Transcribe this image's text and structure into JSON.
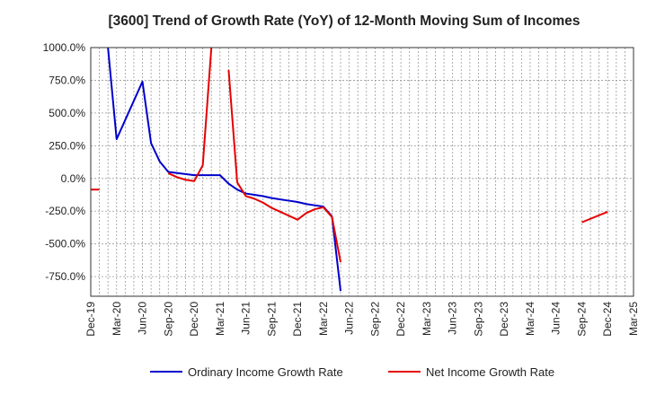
{
  "chart_data": {
    "type": "line",
    "title": "[3600]  Trend of Growth Rate (YoY) of 12-Month Moving Sum of Incomes",
    "xlabel": "",
    "ylabel": "",
    "ylim": [
      -900,
      1000
    ],
    "y_ticks": [
      1000,
      750,
      500,
      250,
      0,
      -250,
      -500,
      -750
    ],
    "y_tick_labels": [
      "1000.0%",
      "750.0%",
      "500.0%",
      "250.0%",
      "0.0%",
      "-250.0%",
      "-500.0%",
      "-750.0%"
    ],
    "x_tick_labels": [
      "Dec-19",
      "Mar-20",
      "Jun-20",
      "Sep-20",
      "Dec-20",
      "Mar-21",
      "Jun-21",
      "Sep-21",
      "Dec-21",
      "Mar-22",
      "Jun-22",
      "Sep-22",
      "Dec-22",
      "Mar-23",
      "Jun-23",
      "Sep-23",
      "Dec-23",
      "Mar-24",
      "Jun-24",
      "Sep-24",
      "Dec-24",
      "Mar-25"
    ],
    "grid": true,
    "legend_position": "bottom",
    "series": [
      {
        "name": "Ordinary Income Growth Rate",
        "color": "#0000cc",
        "values": [
          [
            "2020-02",
            1000
          ],
          [
            "2020-03",
            300
          ],
          [
            "2020-06",
            740
          ],
          [
            "2020-07",
            270
          ],
          [
            "2020-08",
            130
          ],
          [
            "2020-09",
            50
          ],
          [
            "2020-12",
            25
          ],
          [
            "2021-01",
            25
          ],
          [
            "2021-02",
            25
          ],
          [
            "2021-03",
            25
          ],
          [
            "2021-04",
            -40
          ],
          [
            "2021-05",
            -85
          ],
          [
            "2021-06",
            -115
          ],
          [
            "2021-07",
            -125
          ],
          [
            "2021-08",
            -135
          ],
          [
            "2021-09",
            -150
          ],
          [
            "2021-10",
            -160
          ],
          [
            "2021-11",
            -170
          ],
          [
            "2021-12",
            -180
          ],
          [
            "2022-01",
            -195
          ],
          [
            "2022-02",
            -205
          ],
          [
            "2022-03",
            -215
          ],
          [
            "2022-04",
            -290
          ],
          [
            "2022-05",
            -860
          ]
        ]
      },
      {
        "name": "Net Income Growth Rate",
        "color": "#e60000",
        "values": [
          [
            "2019-12",
            -85
          ],
          [
            "2020-01",
            -85
          ],
          null,
          [
            "2020-09",
            40
          ],
          [
            "2020-10",
            10
          ],
          [
            "2020-11",
            -10
          ],
          [
            "2020-12",
            -20
          ],
          [
            "2021-01",
            100
          ],
          [
            "2021-02",
            1000
          ],
          null,
          [
            "2021-04",
            830
          ],
          [
            "2021-05",
            -30
          ],
          [
            "2021-06",
            -135
          ],
          [
            "2021-07",
            -155
          ],
          [
            "2021-08",
            -185
          ],
          [
            "2021-09",
            -225
          ],
          [
            "2021-10",
            -255
          ],
          [
            "2021-11",
            -285
          ],
          [
            "2021-12",
            -315
          ],
          [
            "2022-01",
            -265
          ],
          [
            "2022-02",
            -235
          ],
          [
            "2022-03",
            -220
          ],
          [
            "2022-04",
            -295
          ],
          [
            "2022-05",
            -640
          ],
          null,
          [
            "2024-09",
            -335
          ],
          [
            "2024-12",
            -255
          ]
        ]
      }
    ]
  }
}
